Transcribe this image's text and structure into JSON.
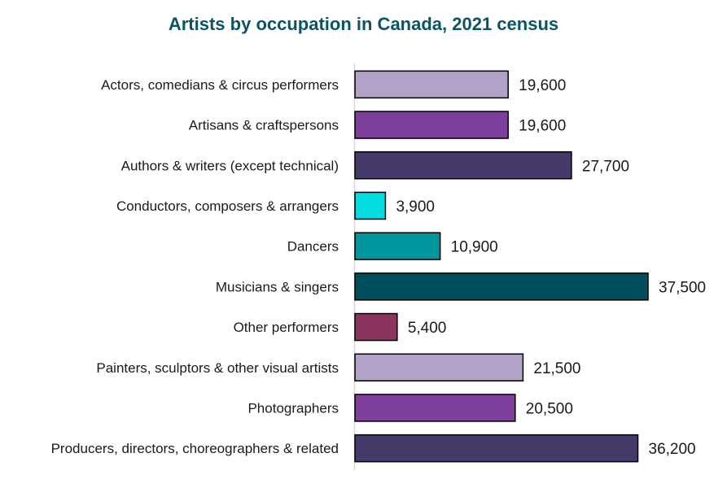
{
  "chart_data": {
    "type": "bar",
    "orientation": "horizontal",
    "title": "Artists by occupation in Canada, 2021 census",
    "xlabel": "",
    "ylabel": "",
    "xlim": [
      0,
      40000
    ],
    "grid": false,
    "categories": [
      "Actors, comedians & circus performers",
      "Artisans & craftspersons",
      "Authors & writers (except technical)",
      "Conductors, composers & arrangers",
      "Dancers",
      "Musicians & singers",
      "Other performers",
      "Painters, sculptors & other visual artists",
      "Photographers",
      "Producers, directors, choreographers & related"
    ],
    "values": [
      19600,
      19600,
      27700,
      3900,
      10900,
      37500,
      5400,
      21500,
      20500,
      36200
    ],
    "value_labels": [
      "19,600",
      "19,600",
      "27,700",
      "3,900",
      "10,900",
      "37,500",
      "5,400",
      "21,500",
      "20,500",
      "36,200"
    ],
    "colors": [
      "#b3a2c8",
      "#7e3f9c",
      "#463a6b",
      "#00dce0",
      "#00969e",
      "#004f5f",
      "#8c3460",
      "#b3a2c8",
      "#7e3f9c",
      "#463a6b"
    ]
  }
}
